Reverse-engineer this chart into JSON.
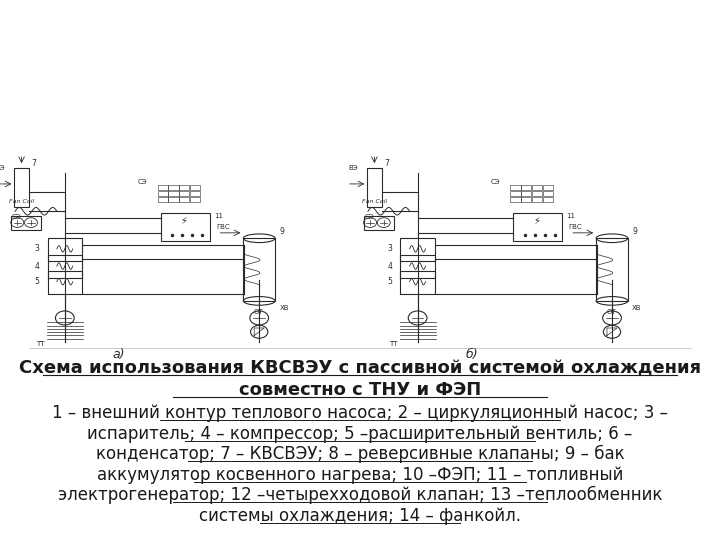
{
  "title_line1": "Схема использования КВСВЭУ с пассивной системой охлаждения",
  "title_line2": "совместно с ТНУ и ФЭП",
  "caption_lines": [
    "1 – внешний контур теплового насоса; 2 – циркуляционный насос; 3 –",
    "испаритель; 4 – компрессор; 5 –расширительный вентиль; 6 –",
    "конденсатор; 7 – КВСВЭУ; 8 – реверсивные клапаны; 9 – бак",
    "аккумулятор косвенного нагрева; 10 –ФЭП; 11 – топливный",
    "электрогенератор; 12 –четырехходовой клапан; 13 –теплообменник",
    "системы охлаждения; 14 – фанкойл."
  ],
  "bg_color": "#ffffff",
  "text_color": "#1a1a1a",
  "title_fontsize": 13.0,
  "caption_fontsize": 12.0,
  "fig_width": 7.2,
  "fig_height": 5.4,
  "dpi": 100
}
